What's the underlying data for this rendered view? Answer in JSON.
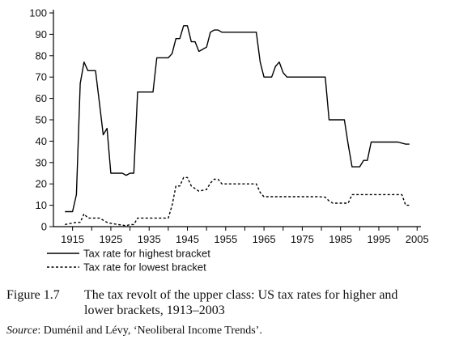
{
  "chart_data": {
    "type": "line",
    "title": "",
    "xlabel": "",
    "ylabel": "",
    "xlim": [
      1910,
      2006
    ],
    "ylim": [
      0,
      100
    ],
    "x_ticks": [
      1915,
      1925,
      1935,
      1945,
      1955,
      1965,
      1975,
      1985,
      1995,
      2005
    ],
    "x_tick_labels": [
      "1915",
      "1925",
      "1935",
      "1945",
      "1955",
      "1965",
      "1975",
      "1985",
      "1995",
      "2005"
    ],
    "y_ticks": [
      0,
      10,
      20,
      30,
      40,
      50,
      60,
      70,
      80,
      90,
      100
    ],
    "y_tick_labels": [
      "0",
      "10",
      "20",
      "30",
      "40",
      "50",
      "60",
      "70",
      "80",
      "90",
      "100"
    ],
    "grid": false,
    "legend_position": "bottom-left",
    "series": [
      {
        "name": "Tax rate for highest bracket",
        "style": "solid",
        "color": "#000000",
        "points": [
          [
            1913,
            7
          ],
          [
            1915,
            7
          ],
          [
            1916,
            15
          ],
          [
            1917,
            67
          ],
          [
            1918,
            77
          ],
          [
            1919,
            73
          ],
          [
            1921,
            73
          ],
          [
            1922,
            58
          ],
          [
            1923,
            43
          ],
          [
            1924,
            46
          ],
          [
            1925,
            25
          ],
          [
            1928,
            25
          ],
          [
            1929,
            24
          ],
          [
            1930,
            25
          ],
          [
            1931,
            25
          ],
          [
            1932,
            63
          ],
          [
            1936,
            63
          ],
          [
            1937,
            79
          ],
          [
            1940,
            79
          ],
          [
            1941,
            81
          ],
          [
            1942,
            88
          ],
          [
            1943,
            88
          ],
          [
            1944,
            94
          ],
          [
            1945,
            94
          ],
          [
            1946,
            86.5
          ],
          [
            1947,
            86.5
          ],
          [
            1948,
            82
          ],
          [
            1950,
            84
          ],
          [
            1951,
            91
          ],
          [
            1952,
            92
          ],
          [
            1953,
            92
          ],
          [
            1954,
            91
          ],
          [
            1963,
            91
          ],
          [
            1964,
            77
          ],
          [
            1965,
            70
          ],
          [
            1967,
            70
          ],
          [
            1968,
            75
          ],
          [
            1969,
            77
          ],
          [
            1970,
            72
          ],
          [
            1971,
            70
          ],
          [
            1981,
            70
          ],
          [
            1982,
            50
          ],
          [
            1986,
            50
          ],
          [
            1987,
            38.5
          ],
          [
            1988,
            28
          ],
          [
            1990,
            28
          ],
          [
            1991,
            31
          ],
          [
            1992,
            31
          ],
          [
            1993,
            39.6
          ],
          [
            2000,
            39.6
          ],
          [
            2001,
            39.1
          ],
          [
            2002,
            38.6
          ],
          [
            2003,
            38.6
          ]
        ]
      },
      {
        "name": "Tax rate for lowest bracket",
        "style": "dashed",
        "color": "#000000",
        "points": [
          [
            1913,
            1
          ],
          [
            1916,
            2
          ],
          [
            1917,
            2
          ],
          [
            1918,
            6
          ],
          [
            1919,
            4
          ],
          [
            1922,
            4
          ],
          [
            1924,
            2
          ],
          [
            1925,
            1.5
          ],
          [
            1929,
            0.4
          ],
          [
            1930,
            1
          ],
          [
            1931,
            1
          ],
          [
            1932,
            4
          ],
          [
            1940,
            4
          ],
          [
            1941,
            10
          ],
          [
            1942,
            19
          ],
          [
            1943,
            19
          ],
          [
            1944,
            23
          ],
          [
            1945,
            23
          ],
          [
            1946,
            19
          ],
          [
            1948,
            16.6
          ],
          [
            1950,
            17.4
          ],
          [
            1951,
            20.4
          ],
          [
            1952,
            22.2
          ],
          [
            1953,
            22.2
          ],
          [
            1954,
            20
          ],
          [
            1963,
            20
          ],
          [
            1964,
            16
          ],
          [
            1965,
            14
          ],
          [
            1976,
            14
          ],
          [
            1978,
            14
          ],
          [
            1979,
            14
          ],
          [
            1981,
            13.8
          ],
          [
            1982,
            12
          ],
          [
            1983,
            11
          ],
          [
            1987,
            11
          ],
          [
            1988,
            15
          ],
          [
            2001,
            15
          ],
          [
            2002,
            10
          ],
          [
            2003,
            10
          ]
        ]
      }
    ]
  },
  "caption": {
    "figure_number": "Figure 1.7",
    "line1": "The tax revolt of the upper class: US tax rates for higher and",
    "line2": "lower brackets, 1913–2003"
  },
  "source": {
    "label": "Source",
    "text": ": Duménil and Lévy, ‘Neoliberal Income Trends’."
  }
}
